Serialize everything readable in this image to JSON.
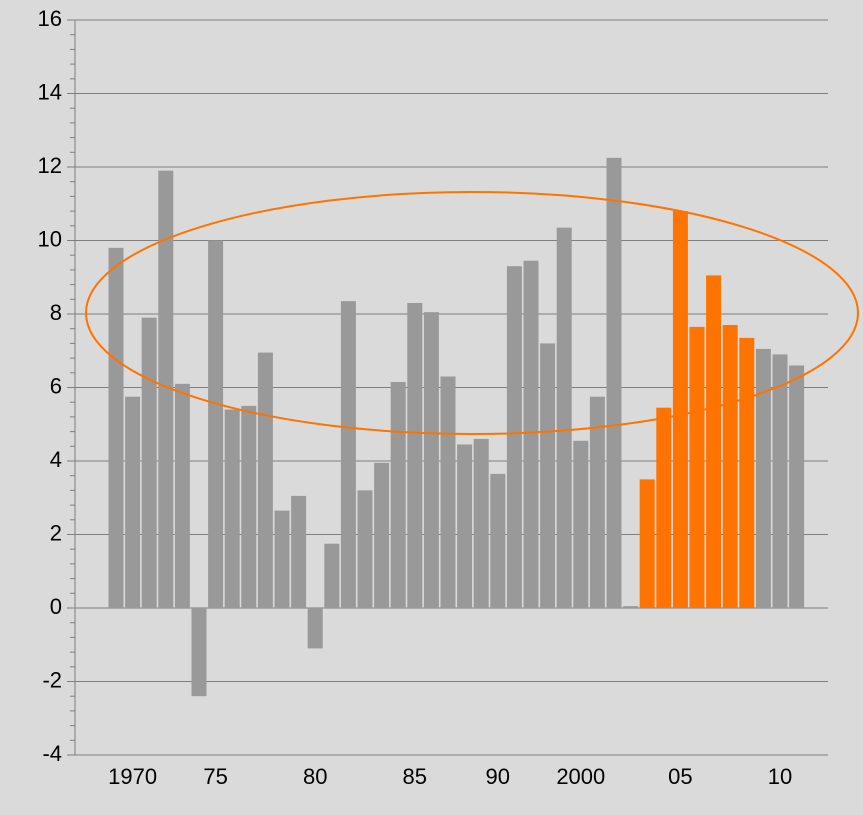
{
  "chart_data": {
    "type": "bar",
    "categories": [
      null,
      "1970",
      null,
      null,
      null,
      null,
      "75",
      null,
      null,
      null,
      null,
      null,
      "80",
      null,
      null,
      null,
      null,
      null,
      "85",
      null,
      null,
      null,
      null,
      "90",
      null,
      null,
      null,
      null,
      "2000",
      null,
      null,
      null,
      null,
      null,
      "05",
      null,
      null,
      null,
      null,
      null,
      "10",
      null
    ],
    "values": [
      9.8,
      5.75,
      7.9,
      11.9,
      6.1,
      -2.4,
      10.0,
      5.4,
      5.5,
      6.95,
      2.65,
      3.05,
      -1.1,
      1.75,
      8.35,
      3.2,
      3.95,
      6.15,
      8.3,
      8.05,
      6.3,
      4.45,
      4.6,
      3.65,
      9.3,
      9.45,
      7.2,
      10.35,
      4.55,
      5.75,
      12.25,
      0.05,
      3.5,
      5.45,
      10.8,
      7.65,
      9.05,
      7.7,
      7.35,
      7.05,
      6.9,
      6.6
    ],
    "colors": [
      "#999999",
      "#999999",
      "#999999",
      "#999999",
      "#999999",
      "#999999",
      "#999999",
      "#999999",
      "#999999",
      "#999999",
      "#999999",
      "#999999",
      "#999999",
      "#999999",
      "#999999",
      "#999999",
      "#999999",
      "#999999",
      "#999999",
      "#999999",
      "#999999",
      "#999999",
      "#999999",
      "#999999",
      "#999999",
      "#999999",
      "#999999",
      "#999999",
      "#999999",
      "#999999",
      "#999999",
      "#999999",
      "#ff7300",
      "#ff7300",
      "#ff7300",
      "#ff7300",
      "#ff7300",
      "#ff7300",
      "#ff7300",
      "#999999",
      "#999999",
      "#999999"
    ],
    "ylim": [
      -4,
      16
    ],
    "yticks": [
      -4,
      -2,
      0,
      2,
      4,
      6,
      8,
      10,
      12,
      14,
      16
    ],
    "grid": true
  }
}
